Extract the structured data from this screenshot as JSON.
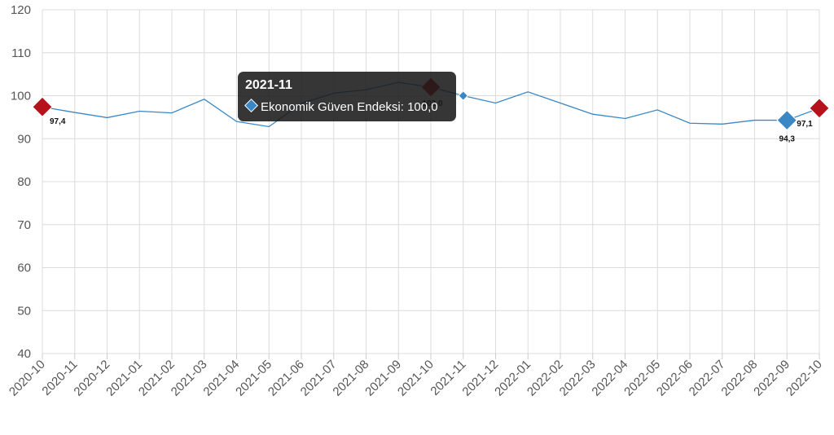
{
  "chart_data": {
    "type": "line",
    "x": [
      "2020-10",
      "2020-11",
      "2020-12",
      "2021-01",
      "2021-02",
      "2021-03",
      "2021-04",
      "2021-05",
      "2021-06",
      "2021-07",
      "2021-08",
      "2021-09",
      "2021-10",
      "2021-11",
      "2021-12",
      "2022-01",
      "2022-02",
      "2022-03",
      "2022-04",
      "2022-05",
      "2022-06",
      "2022-07",
      "2022-08",
      "2022-09",
      "2022-10"
    ],
    "series": [
      {
        "name": "Ekonomik Güven Endeksi",
        "values": [
          97.4,
          96.1,
          94.9,
          96.4,
          96.0,
          99.2,
          94.0,
          92.8,
          98.2,
          100.6,
          101.4,
          103.1,
          102.0,
          100.0,
          98.3,
          100.9,
          98.3,
          95.7,
          94.7,
          96.7,
          93.6,
          93.4,
          94.3,
          94.3,
          97.1
        ],
        "color": "#3a87c5"
      }
    ],
    "ylim": [
      40,
      120
    ],
    "yticks": [
      40,
      50,
      60,
      70,
      80,
      90,
      100,
      110,
      120
    ],
    "grid": true,
    "highlights": [
      {
        "index": 0,
        "label": "97,4",
        "color": "#b5121b"
      },
      {
        "index": 12,
        "label": "102,0",
        "color": "#b5121b"
      },
      {
        "index": 23,
        "label": "94,3",
        "color": "#3a87c5"
      },
      {
        "index": 24,
        "label": "97,1",
        "color": "#b5121b"
      }
    ],
    "tooltip": {
      "index": 13,
      "title": "2021-11",
      "text": "Ekonomik Güven Endeksi: 100,0"
    }
  }
}
